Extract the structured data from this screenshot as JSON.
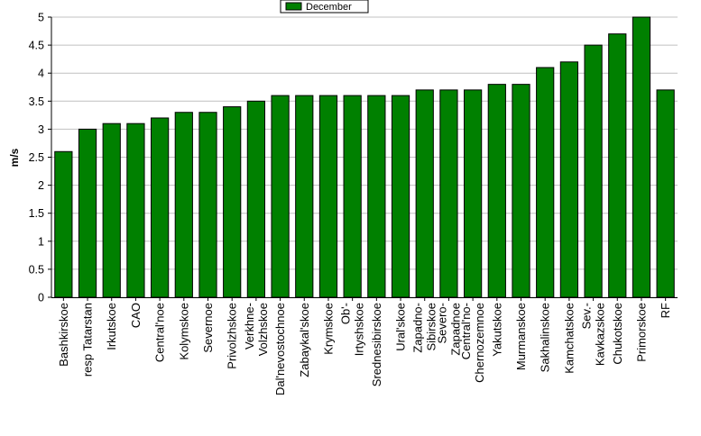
{
  "chart_data": {
    "type": "bar",
    "title": "",
    "xlabel": "",
    "ylabel": "m/s",
    "ylim": [
      0,
      5
    ],
    "yticks": [
      "0",
      "0.5",
      "1",
      "1.5",
      "2",
      "2.5",
      "3",
      "3.5",
      "4",
      "4.5",
      "5"
    ],
    "grid": true,
    "legend_position": "top-center",
    "categories": [
      "Bashkirskoe",
      "resp Tatarstan",
      "Irkutskoe",
      "CAO",
      "Central'noe",
      "Kolymskoe",
      "Severnoe",
      "Privolzhskoe",
      "Verkhne-Volzhskoe",
      "Dal'nevostochnoe",
      "Zabaykal'skoe",
      "Krymskoe",
      "Ob'-Irtyshskoe",
      "Srednesibirskoe",
      "Ural'skoe",
      "Zapadno-Sibirskoe",
      "Severo-Zapadnoe",
      "Central'no-Chernozemnoe",
      "Yakutskoe",
      "Murmanskoe",
      "Sakhalinskoe",
      "Kamchatskoe",
      "Sev.-Kavkazskoe",
      "Chukotskoe",
      "Primorskoe",
      "RF"
    ],
    "category_lines": [
      [
        "Bashkirskoe"
      ],
      [
        "resp Tatarstan"
      ],
      [
        "Irkutskoe"
      ],
      [
        "CAO"
      ],
      [
        "Central'noe"
      ],
      [
        "Kolymskoe"
      ],
      [
        "Severnoe"
      ],
      [
        "Privolzhskoe"
      ],
      [
        "Verkhne-",
        "Volzhskoe"
      ],
      [
        "Dal'nevostochnoe"
      ],
      [
        "Zabaykal'skoe"
      ],
      [
        "Krymskoe"
      ],
      [
        "Ob'-",
        "Irtyshskoe"
      ],
      [
        "Srednesibirskoe"
      ],
      [
        "Ural'skoe"
      ],
      [
        "Zapadno-",
        "Sibirskoe"
      ],
      [
        "Severo-",
        "Zapadnoe"
      ],
      [
        "Central'no-",
        "Chernozemnoe"
      ],
      [
        "Yakutskoe"
      ],
      [
        "Murmanskoe"
      ],
      [
        "Sakhalinskoe"
      ],
      [
        "Kamchatskoe"
      ],
      [
        "Sev.-",
        "Kavkazskoe"
      ],
      [
        "Chukotskoe"
      ],
      [
        "Primorskoe"
      ],
      [
        "RF"
      ]
    ],
    "series": [
      {
        "name": "December",
        "color": "#008000",
        "values": [
          2.6,
          3.0,
          3.1,
          3.1,
          3.2,
          3.3,
          3.3,
          3.4,
          3.5,
          3.6,
          3.6,
          3.6,
          3.6,
          3.6,
          3.6,
          3.7,
          3.7,
          3.7,
          3.8,
          3.8,
          4.1,
          4.2,
          4.5,
          4.7,
          5.0,
          3.7
        ]
      }
    ]
  }
}
